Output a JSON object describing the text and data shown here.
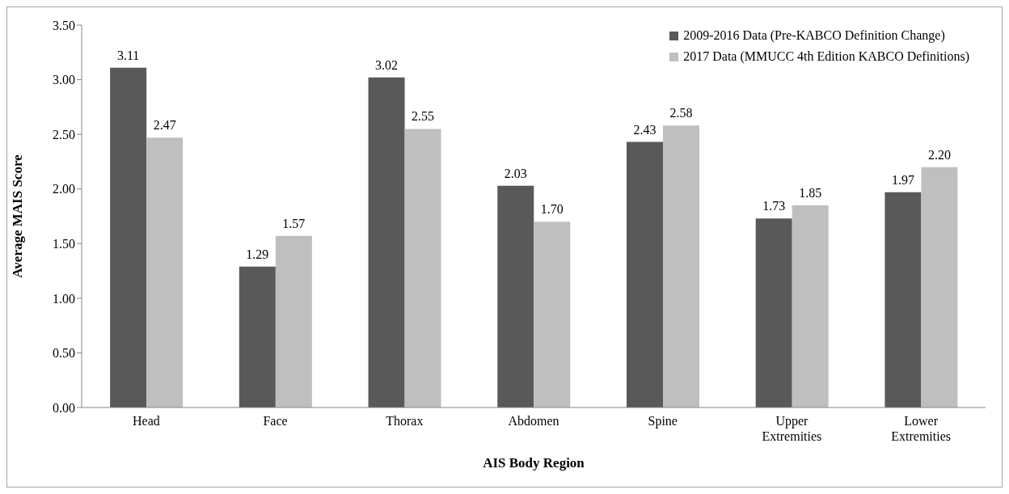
{
  "chart_data": {
    "type": "bar",
    "xlabel": "AIS Body Region",
    "ylabel": "Average MAIS Score",
    "categories": [
      "Head",
      "Face",
      "Thorax",
      "Abdomen",
      "Spine",
      "Upper Extremities",
      "Lower Extremities"
    ],
    "series": [
      {
        "name": "2009-2016 Data (Pre-KABCO Definition Change)",
        "color": "#595959",
        "values": [
          3.11,
          1.29,
          3.02,
          2.03,
          2.43,
          1.73,
          1.97
        ],
        "value_labels": [
          "3.11",
          "1.29",
          "3.02",
          "2.03",
          "2.43",
          "1.73",
          "1.97"
        ]
      },
      {
        "name": "2017 Data (MMUCC 4th Edition KABCO Definitions)",
        "color": "#bfbfbf",
        "values": [
          2.47,
          1.57,
          2.55,
          1.7,
          2.58,
          1.85,
          2.2
        ],
        "value_labels": [
          "2.47",
          "1.57",
          "2.55",
          "1.70",
          "2.58",
          "1.85",
          "2.20"
        ]
      }
    ],
    "ylim": [
      0,
      3.5
    ],
    "yticks": [
      {
        "value": 0,
        "label": "0.00"
      },
      {
        "value": 0.5,
        "label": "0.50"
      },
      {
        "value": 1,
        "label": "1.00"
      },
      {
        "value": 1.5,
        "label": "1.50"
      },
      {
        "value": 2,
        "label": "2.00"
      },
      {
        "value": 2.5,
        "label": "2.50"
      },
      {
        "value": 3,
        "label": "3.00"
      },
      {
        "value": 3.5,
        "label": "3.50"
      }
    ],
    "grid": false,
    "legend": "top right"
  }
}
